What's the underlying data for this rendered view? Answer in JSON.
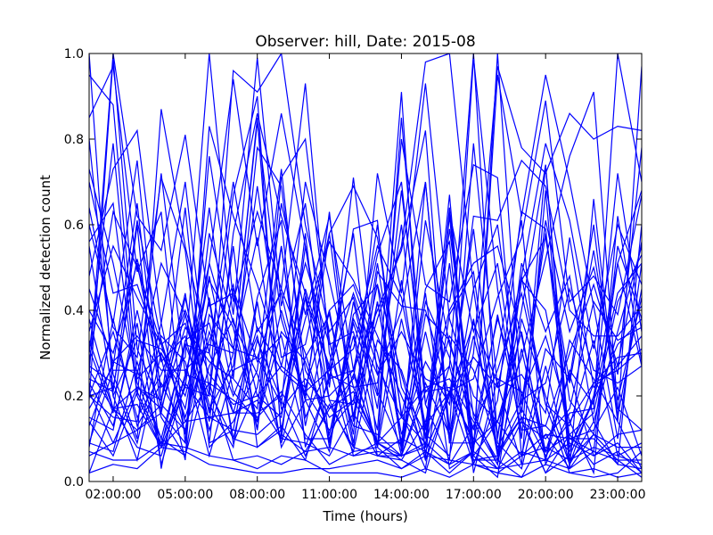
{
  "chart_data": {
    "type": "line",
    "title": "Observer: hill, Date: 2015-08",
    "xlabel": "Time (hours)",
    "ylabel": "Normalized detection count",
    "xlim": [
      1,
      24
    ],
    "ylim": [
      0,
      1
    ],
    "x": [
      1,
      2,
      3,
      4,
      5,
      6,
      7,
      8,
      9,
      10,
      11,
      12,
      13,
      14,
      15,
      16,
      17,
      18,
      19,
      20,
      21,
      22,
      23,
      24
    ],
    "x_ticks": [
      {
        "value": 2,
        "label": "02:00:00"
      },
      {
        "value": 5,
        "label": "05:00:00"
      },
      {
        "value": 8,
        "label": "08:00:00"
      },
      {
        "value": 11,
        "label": "11:00:00"
      },
      {
        "value": 14,
        "label": "14:00:00"
      },
      {
        "value": 17,
        "label": "17:00:00"
      },
      {
        "value": 20,
        "label": "20:00:00"
      },
      {
        "value": 23,
        "label": "23:00:00"
      }
    ],
    "y_ticks": [
      {
        "value": 0.0,
        "label": "0.0"
      },
      {
        "value": 0.2,
        "label": "0.2"
      },
      {
        "value": 0.4,
        "label": "0.4"
      },
      {
        "value": 0.6,
        "label": "0.6"
      },
      {
        "value": 0.8,
        "label": "0.8"
      },
      {
        "value": 1.0,
        "label": "1.0"
      }
    ],
    "grid": false,
    "legend": "none",
    "line_color": "#0000ff",
    "series": [
      {
        "values": [
          1.0,
          0.2,
          0.05,
          0.3,
          0.2,
          0.42,
          0.1,
          0.33,
          0.19,
          0.06,
          0.18,
          0.08,
          0.06,
          0.1,
          0.07,
          0.21,
          0.1,
          0.03,
          0.07,
          0.05,
          0.09,
          0.06,
          0.11,
          0.12
        ]
      },
      {
        "values": [
          0.95,
          0.88,
          0.24,
          0.3,
          0.17,
          0.48,
          0.21,
          0.14,
          0.35,
          0.28,
          0.11,
          0.34,
          0.06,
          0.06,
          0.08,
          0.59,
          0.15,
          0.05,
          0.47,
          0.4,
          0.1,
          0.12,
          0.22,
          0.06
        ]
      },
      {
        "values": [
          0.8,
          0.25,
          0.1,
          0.87,
          0.55,
          0.3,
          0.16,
          0.36,
          0.26,
          0.21,
          0.12,
          0.19,
          0.09,
          0.09,
          0.42,
          0.29,
          0.05,
          0.06,
          0.17,
          0.06,
          0.14,
          0.02,
          0.62,
          0.28
        ]
      },
      {
        "values": [
          0.25,
          1.0,
          0.62,
          0.54,
          0.81,
          0.41,
          0.44,
          0.2,
          0.15,
          0.45,
          0.26,
          0.44,
          0.27,
          0.15,
          0.44,
          0.03,
          0.07,
          1.0,
          0.18,
          0.58,
          0.19,
          0.11,
          0.05,
          0.01
        ]
      },
      {
        "values": [
          0.55,
          0.2,
          0.33,
          0.31,
          0.22,
          0.2,
          0.67,
          0.9,
          0.1,
          0.58,
          0.09,
          0.37,
          0.2,
          0.91,
          0.05,
          0.64,
          0.08,
          0.3,
          0.61,
          0.04,
          0.16,
          0.17,
          1.0,
          0.7
        ]
      },
      {
        "values": [
          0.14,
          0.06,
          0.21,
          0.09,
          0.24,
          0.51,
          0.31,
          0.29,
          0.45,
          0.3,
          0.11,
          0.38,
          0.25,
          0.4,
          0.7,
          0.09,
          0.34,
          0.11,
          0.4,
          0.74,
          0.08,
          0.19,
          0.44,
          0.51
        ]
      },
      {
        "values": [
          0.2,
          0.22,
          0.52,
          0.28,
          0.34,
          0.12,
          0.3,
          0.84,
          0.38,
          0.19,
          0.63,
          0.15,
          0.51,
          0.16,
          0.03,
          0.39,
          0.49,
          0.07,
          0.15,
          0.13,
          0.3,
          0.46,
          0.27,
          0.56
        ]
      },
      {
        "values": [
          0.3,
          0.79,
          0.2,
          0.72,
          0.25,
          0.47,
          0.36,
          0.12,
          0.71,
          0.8,
          0.33,
          0.08,
          0.49,
          0.41,
          0.4,
          0.2,
          0.59,
          0.1,
          0.47,
          0.57,
          0.23,
          0.54,
          0.19,
          0.43
        ]
      },
      {
        "values": [
          0.02,
          0.04,
          0.03,
          0.08,
          0.07,
          0.04,
          0.03,
          0.02,
          0.02,
          0.03,
          0.03,
          0.04,
          0.05,
          0.03,
          0.06,
          0.05,
          0.04,
          0.02,
          0.06,
          0.08,
          0.05,
          0.08,
          0.06,
          0.04
        ]
      },
      {
        "values": [
          0.27,
          0.23,
          0.09,
          0.34,
          0.28,
          0.06,
          0.26,
          0.29,
          0.18,
          0.7,
          0.47,
          0.22,
          0.09,
          0.06,
          0.39,
          0.33,
          0.12,
          0.38,
          0.2,
          0.34,
          0.14,
          0.23,
          0.29,
          0.3
        ]
      },
      {
        "values": [
          0.06,
          0.09,
          0.12,
          0.18,
          0.64,
          0.08,
          0.14,
          0.26,
          0.73,
          0.21,
          0.26,
          0.31,
          0.55,
          0.43,
          0.13,
          0.21,
          0.29,
          0.22,
          0.48,
          0.79,
          0.61,
          0.31,
          0.6,
          0.46
        ]
      },
      {
        "values": [
          0.85,
          0.97,
          0.49,
          0.63,
          0.09,
          0.58,
          0.37,
          0.25,
          0.1,
          0.55,
          0.19,
          0.07,
          0.33,
          0.26,
          0.08,
          0.63,
          0.35,
          0.51,
          0.14,
          0.1,
          0.17,
          0.42,
          0.33,
          0.36
        ]
      },
      {
        "values": [
          0.2,
          0.35,
          0.15,
          0.25,
          0.4,
          0.25,
          0.18,
          0.2,
          0.27,
          0.22,
          0.4,
          0.46,
          0.3,
          0.06,
          0.21,
          0.27,
          0.05,
          0.05,
          0.01,
          0.11,
          0.03,
          0.11,
          0.08,
          0.08
        ]
      },
      {
        "values": [
          0.38,
          0.17,
          0.18,
          0.08,
          0.33,
          0.37,
          0.16,
          0.16,
          0.2,
          0.43,
          0.08,
          0.39,
          0.46,
          0.25,
          0.05,
          0.2,
          0.37,
          0.23,
          0.04,
          0.68,
          0.03,
          0.66,
          0.15,
          0.45
        ]
      },
      {
        "values": [
          0.28,
          0.63,
          0.5,
          0.32,
          0.15,
          0.33,
          0.46,
          0.12,
          0.55,
          0.15,
          0.27,
          0.06,
          0.09,
          0.47,
          0.1,
          0.62,
          0.06,
          0.14,
          0.06,
          0.11,
          0.1,
          0.07,
          0.55,
          0.38
        ]
      },
      {
        "values": [
          0.6,
          0.37,
          0.75,
          0.19,
          0.44,
          0.09,
          0.12,
          0.43,
          0.61,
          0.08,
          0.24,
          0.59,
          0.61,
          0.07,
          0.45,
          0.56,
          0.02,
          0.24,
          0.21,
          0.07,
          0.25,
          0.06,
          0.09,
          0.02
        ]
      },
      {
        "values": [
          0.73,
          0.51,
          0.23,
          0.1,
          0.06,
          0.39,
          0.31,
          0.57,
          0.17,
          0.24,
          0.17,
          0.24,
          0.6,
          0.15,
          0.09,
          0.27,
          1.0,
          0.09,
          0.03,
          0.27,
          0.04,
          0.14,
          0.04,
          0.03
        ]
      },
      {
        "values": [
          0.09,
          0.07,
          0.28,
          0.08,
          0.14,
          0.15,
          0.12,
          0.11,
          0.16,
          0.38,
          0.56,
          0.47,
          0.34,
          0.2,
          0.07,
          0.04,
          0.13,
          0.26,
          0.44,
          0.18,
          0.02,
          0.01,
          0.02,
          0.07
        ]
      },
      {
        "values": [
          0.13,
          0.28,
          0.34,
          0.26,
          0.26,
          0.32,
          0.3,
          0.85,
          0.11,
          0.07,
          0.17,
          0.21,
          0.09,
          0.15,
          0.22,
          0.24,
          0.14,
          0.04,
          0.31,
          0.05,
          0.33,
          0.24,
          0.14,
          0.03
        ]
      },
      {
        "values": [
          0.35,
          0.55,
          0.43,
          0.32,
          0.37,
          0.2,
          0.96,
          0.91,
          1.0,
          0.6,
          0.35,
          0.43,
          0.21,
          0.08,
          0.35,
          0.1,
          0.38,
          0.06,
          0.15,
          0.02,
          0.06,
          0.19,
          0.32,
          0.38
        ]
      },
      {
        "values": [
          0.17,
          0.27,
          0.65,
          0.16,
          0.09,
          0.76,
          0.39,
          0.99,
          0.41,
          0.65,
          0.22,
          0.71,
          0.25,
          0.35,
          0.24,
          0.21,
          0.24,
          0.43,
          0.57,
          0.89,
          0.42,
          0.48,
          0.39,
          0.67
        ]
      },
      {
        "values": [
          0.02,
          0.17,
          0.12,
          0.16,
          0.43,
          0.16,
          0.45,
          0.28,
          0.34,
          0.1,
          0.1,
          0.25,
          0.09,
          0.05,
          0.14,
          0.34,
          0.26,
          0.08,
          0.19,
          0.23,
          0.45,
          0.26,
          0.23,
          0.27
        ]
      },
      {
        "values": [
          0.56,
          0.65,
          0.2,
          0.08,
          0.22,
          0.64,
          0.24,
          0.78,
          0.69,
          0.26,
          0.15,
          0.19,
          0.46,
          0.08,
          0.7,
          0.12,
          0.99,
          0.45,
          0.1,
          0.74,
          0.05,
          0.11,
          0.51,
          0.27
        ]
      },
      {
        "values": [
          0.4,
          0.3,
          0.51,
          0.22,
          0.29,
          1.0,
          0.42,
          0.63,
          0.45,
          0.93,
          0.3,
          0.13,
          0.11,
          0.06,
          0.23,
          0.11,
          0.45,
          0.06,
          0.51,
          0.35,
          0.48,
          0.14,
          0.35,
          0.55
        ]
      },
      {
        "values": [
          0.33,
          0.17,
          0.08,
          0.06,
          0.25,
          0.23,
          0.19,
          0.15,
          0.21,
          0.11,
          0.04,
          0.07,
          0.08,
          0.85,
          0.18,
          0.05,
          0.79,
          0.22,
          0.25,
          0.16,
          0.57,
          0.22,
          0.27,
          0.34
        ]
      },
      {
        "values": [
          0.21,
          0.09,
          0.22,
          0.19,
          0.39,
          0.18,
          0.08,
          0.42,
          0.08,
          0.19,
          0.2,
          0.26,
          0.08,
          0.38,
          0.12,
          0.67,
          0.04,
          0.19,
          0.63,
          0.59,
          0.1,
          0.1,
          0.04,
          0.6
        ]
      },
      {
        "values": [
          0.07,
          0.05,
          0.05,
          0.09,
          0.08,
          0.06,
          0.05,
          0.06,
          0.04,
          0.07,
          0.08,
          0.06,
          0.07,
          0.06,
          0.09,
          0.04,
          0.07,
          0.03,
          0.04,
          0.05,
          0.03,
          0.07,
          0.05,
          0.05
        ]
      },
      {
        "values": [
          0.24,
          0.21,
          0.61,
          0.33,
          0.14,
          0.23,
          0.05,
          0.03,
          0.06,
          0.05,
          0.02,
          0.02,
          0.02,
          0.01,
          0.03,
          0.01,
          0.04,
          0.02,
          0.01,
          0.04,
          0.02,
          0.03,
          0.01,
          0.02
        ]
      },
      {
        "values": [
          0.15,
          0.12,
          0.4,
          0.15,
          0.06,
          0.27,
          0.38,
          0.14,
          0.4,
          0.2,
          0.58,
          0.69,
          0.57,
          0.22,
          0.11,
          0.06,
          0.3,
          0.97,
          0.78,
          0.72,
          0.86,
          0.8,
          0.83,
          0.82
        ]
      },
      {
        "values": [
          0.09,
          0.26,
          0.26,
          0.1,
          0.32,
          0.17,
          0.27,
          0.69,
          0.29,
          0.32,
          0.58,
          0.14,
          0.42,
          0.11,
          0.28,
          0.18,
          0.62,
          0.61,
          0.75,
          0.69,
          0.4,
          0.34,
          0.34,
          0.41
        ]
      },
      {
        "values": [
          0.23,
          0.13,
          0.37,
          0.04,
          0.23,
          0.15,
          0.16,
          0.19,
          0.1,
          0.09,
          0.06,
          0.16,
          0.06,
          0.05,
          0.02,
          0.21,
          0.04,
          0.03,
          0.14,
          0.02,
          0.11,
          0.04,
          0.07,
          0.02
        ]
      },
      {
        "values": [
          0.48,
          0.73,
          0.82,
          0.37,
          0.11,
          0.51,
          0.94,
          0.55,
          0.86,
          0.55,
          0.24,
          0.26,
          0.4,
          0.54,
          0.82,
          0.09,
          0.09,
          0.14,
          0.29,
          0.52,
          0.76,
          0.91,
          0.17,
          0.12
        ]
      },
      {
        "values": [
          0.64,
          0.36,
          0.29,
          0.71,
          0.54,
          0.09,
          0.58,
          0.86,
          0.62,
          0.44,
          0.19,
          0.18,
          0.38,
          0.55,
          0.98,
          1.0,
          0.45,
          0.6,
          0.16,
          0.61,
          0.35,
          0.5,
          0.25,
          0.78
        ]
      },
      {
        "values": [
          0.2,
          0.15,
          0.14,
          0.37,
          0.7,
          0.21,
          0.1,
          0.08,
          0.12,
          0.43,
          0.27,
          0.58,
          0.08,
          0.03,
          0.07,
          0.02,
          0.07,
          0.95,
          0.62,
          0.95,
          0.7,
          0.41,
          0.1,
          0.51
        ]
      },
      {
        "values": [
          0.26,
          0.17,
          0.22,
          0.17,
          0.36,
          0.28,
          0.24,
          0.17,
          0.65,
          0.39,
          0.62,
          0.26,
          0.53,
          0.7,
          0.18,
          0.4,
          0.51,
          0.55,
          0.34,
          0.07,
          0.11,
          0.16,
          0.42,
          0.53
        ]
      },
      {
        "values": [
          0.45,
          0.28,
          0.25,
          0.51,
          0.39,
          0.14,
          0.55,
          0.08,
          0.13,
          0.05,
          0.25,
          0.22,
          0.23,
          0.6,
          0.1,
          0.51,
          0.06,
          0.01,
          0.38,
          0.2,
          0.04,
          0.2,
          0.51,
          0.68
        ]
      },
      {
        "values": [
          0.08,
          0.38,
          0.13,
          0.23,
          0.12,
          0.35,
          0.2,
          0.34,
          0.09,
          0.29,
          0.39,
          0.11,
          0.72,
          0.44,
          0.93,
          0.38,
          0.2,
          0.14,
          0.35,
          0.05,
          0.26,
          0.18,
          0.72,
          0.35
        ]
      },
      {
        "values": [
          0.31,
          0.16,
          0.6,
          0.03,
          0.32,
          0.3,
          0.7,
          0.35,
          0.44,
          0.19,
          0.07,
          0.42,
          0.17,
          0.68,
          0.21,
          0.22,
          0.09,
          0.39,
          0.12,
          0.13,
          0.07,
          0.23,
          0.26,
          0.31
        ]
      },
      {
        "values": [
          0.7,
          0.44,
          0.46,
          0.29,
          0.05,
          0.83,
          0.62,
          0.46,
          0.27,
          0.51,
          0.32,
          0.35,
          0.12,
          0.8,
          0.46,
          0.42,
          0.74,
          0.71,
          0.06,
          0.31,
          0.24,
          0.6,
          0.14,
          0.97
        ]
      },
      {
        "values": [
          0.19,
          0.99,
          0.31,
          0.18,
          0.12,
          0.43,
          0.09,
          0.22,
          0.55,
          0.13,
          0.4,
          0.09,
          0.42,
          0.09,
          0.61,
          0.32,
          0.16,
          0.04,
          0.48,
          0.18,
          0.13,
          0.33,
          0.06,
          0.09
        ]
      }
    ]
  }
}
